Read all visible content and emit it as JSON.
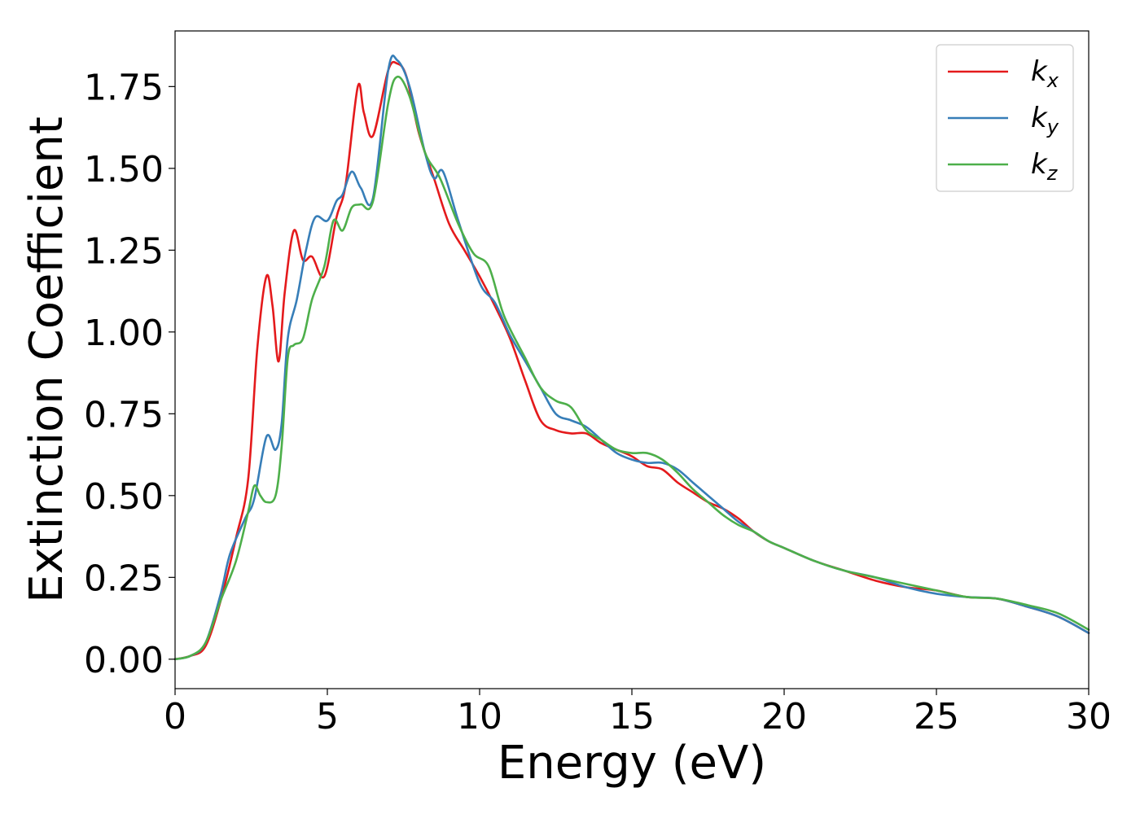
{
  "chart_data": {
    "type": "line",
    "xlabel": "Energy (eV)",
    "ylabel": "Extinction Coefficient",
    "xlim": [
      0,
      30
    ],
    "ylim": [
      -0.09,
      1.92
    ],
    "xticks": [
      0,
      5,
      10,
      15,
      20,
      25,
      30
    ],
    "yticks": [
      0.0,
      0.25,
      0.5,
      0.75,
      1.0,
      1.25,
      1.5,
      1.75
    ],
    "xtick_labels": [
      "0",
      "5",
      "10",
      "15",
      "20",
      "25",
      "30"
    ],
    "ytick_labels": [
      "0.00",
      "0.25",
      "0.50",
      "0.75",
      "1.00",
      "1.25",
      "1.50",
      "1.75"
    ],
    "grid": false,
    "legend_position": "top-right",
    "series": [
      {
        "name": "kx",
        "label_base": "k",
        "label_sub": "x",
        "color": "#e41a1c",
        "x": [
          0,
          0.5,
          1.0,
          1.5,
          2.0,
          2.4,
          2.7,
          3.0,
          3.2,
          3.4,
          3.6,
          3.9,
          4.2,
          4.5,
          4.9,
          5.3,
          5.6,
          6.0,
          6.2,
          6.5,
          7.0,
          7.3,
          7.6,
          8.0,
          8.5,
          9.0,
          9.5,
          10.0,
          10.5,
          11.0,
          11.5,
          12.0,
          12.5,
          13.0,
          13.5,
          14.0,
          14.5,
          15.0,
          15.5,
          16.0,
          16.5,
          17.0,
          17.5,
          18.0,
          18.5,
          19.0,
          19.5,
          20.0,
          21.0,
          22.0,
          23.0,
          24.0,
          25.0,
          26.0,
          27.0,
          28.0,
          29.0,
          30.0
        ],
        "y": [
          0.0,
          0.01,
          0.04,
          0.18,
          0.37,
          0.55,
          0.95,
          1.17,
          1.08,
          0.91,
          1.12,
          1.31,
          1.22,
          1.23,
          1.17,
          1.35,
          1.45,
          1.75,
          1.67,
          1.6,
          1.8,
          1.82,
          1.78,
          1.61,
          1.47,
          1.33,
          1.25,
          1.17,
          1.08,
          0.98,
          0.85,
          0.73,
          0.7,
          0.69,
          0.69,
          0.66,
          0.64,
          0.62,
          0.59,
          0.58,
          0.54,
          0.51,
          0.48,
          0.46,
          0.43,
          0.39,
          0.36,
          0.34,
          0.3,
          0.27,
          0.24,
          0.22,
          0.21,
          0.19,
          0.185,
          0.16,
          0.13,
          0.08
        ]
      },
      {
        "name": "ky",
        "label_base": "k",
        "label_sub": "y",
        "color": "#377eb8",
        "x": [
          0,
          0.5,
          1.0,
          1.5,
          1.8,
          2.3,
          2.6,
          3.0,
          3.3,
          3.5,
          3.7,
          4.0,
          4.3,
          4.6,
          5.0,
          5.3,
          5.5,
          5.8,
          6.1,
          6.5,
          7.0,
          7.3,
          7.7,
          8.2,
          8.5,
          8.8,
          9.3,
          10.0,
          10.5,
          11.0,
          11.5,
          12.0,
          12.5,
          13.0,
          13.5,
          14.0,
          14.5,
          15.0,
          15.5,
          16.0,
          16.5,
          17.0,
          17.5,
          18.0,
          18.5,
          19.0,
          19.5,
          20.0,
          21.0,
          22.0,
          23.0,
          24.0,
          25.0,
          26.0,
          27.0,
          28.0,
          29.0,
          30.0
        ],
        "y": [
          0.0,
          0.01,
          0.05,
          0.2,
          0.32,
          0.43,
          0.49,
          0.68,
          0.64,
          0.72,
          0.98,
          1.1,
          1.25,
          1.35,
          1.34,
          1.4,
          1.42,
          1.49,
          1.44,
          1.41,
          1.8,
          1.83,
          1.75,
          1.55,
          1.47,
          1.49,
          1.34,
          1.15,
          1.09,
          0.99,
          0.91,
          0.83,
          0.75,
          0.73,
          0.71,
          0.67,
          0.63,
          0.61,
          0.6,
          0.6,
          0.58,
          0.54,
          0.5,
          0.46,
          0.42,
          0.39,
          0.36,
          0.34,
          0.3,
          0.27,
          0.25,
          0.22,
          0.2,
          0.19,
          0.185,
          0.16,
          0.13,
          0.08
        ]
      },
      {
        "name": "kz",
        "label_base": "k",
        "label_sub": "z",
        "color": "#4daf4a",
        "x": [
          0,
          0.5,
          1.0,
          1.5,
          2.0,
          2.4,
          2.6,
          2.8,
          3.0,
          3.3,
          3.5,
          3.7,
          3.9,
          4.2,
          4.5,
          4.9,
          5.2,
          5.5,
          5.8,
          6.1,
          6.5,
          7.0,
          7.3,
          7.7,
          8.2,
          8.7,
          9.3,
          9.8,
          10.3,
          10.8,
          11.5,
          12.0,
          12.5,
          13.0,
          13.5,
          14.0,
          14.5,
          15.0,
          15.5,
          16.0,
          16.5,
          17.0,
          17.5,
          18.0,
          18.5,
          19.0,
          19.5,
          20.0,
          21.0,
          22.0,
          23.0,
          24.0,
          25.0,
          26.0,
          27.0,
          28.0,
          29.0,
          30.0
        ],
        "y": [
          0.0,
          0.01,
          0.05,
          0.18,
          0.3,
          0.45,
          0.53,
          0.5,
          0.48,
          0.5,
          0.65,
          0.92,
          0.96,
          0.98,
          1.1,
          1.2,
          1.34,
          1.31,
          1.38,
          1.39,
          1.4,
          1.7,
          1.78,
          1.72,
          1.55,
          1.47,
          1.33,
          1.24,
          1.2,
          1.05,
          0.92,
          0.83,
          0.79,
          0.77,
          0.7,
          0.67,
          0.64,
          0.63,
          0.63,
          0.61,
          0.57,
          0.52,
          0.48,
          0.44,
          0.41,
          0.39,
          0.36,
          0.34,
          0.3,
          0.27,
          0.25,
          0.23,
          0.21,
          0.19,
          0.185,
          0.165,
          0.14,
          0.09
        ]
      }
    ]
  }
}
